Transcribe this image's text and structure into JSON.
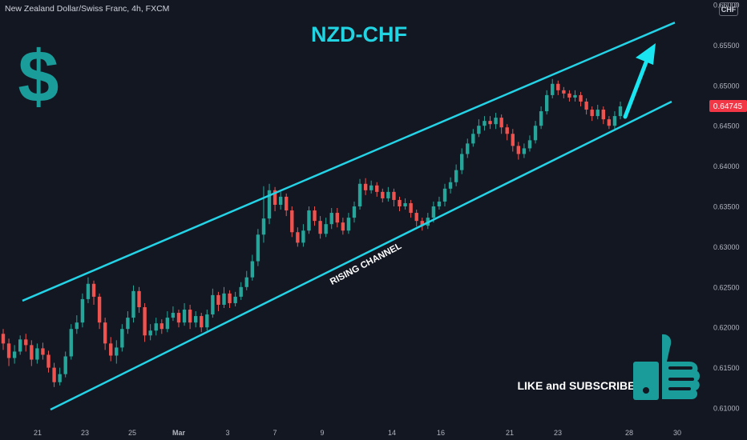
{
  "header": {
    "symbol_description": "New Zealand Dollar/Swiss Franc, 4h, FXCM",
    "currency_badge": "CHF"
  },
  "annotations": {
    "title": "NZD-CHF",
    "channel_label": "RISING CHANNEL",
    "cta": "LIKE and SUBSCRIBE",
    "dollar_symbol": "$",
    "thumbs_icon": "thumbs-up-icon",
    "arrow_icon": "up-arrow-icon"
  },
  "colors": {
    "background": "#131722",
    "up_candle": "#26a69a",
    "down_candle": "#ef5350",
    "channel_line": "#24d3e6",
    "title": "#22d3e2",
    "dollar": "#1a9c9a",
    "price_badge": "#f23645"
  },
  "chart_data": {
    "type": "candlestick",
    "title": "NZD-CHF",
    "interval": "4h",
    "ylim": [
      0.61,
      0.66
    ],
    "y_ticks": [
      "0.61000",
      "0.61500",
      "0.62000",
      "0.62500",
      "0.63000",
      "0.63500",
      "0.64000",
      "0.64500",
      "0.65000",
      "0.65500",
      "0.66000"
    ],
    "x_ticks": [
      "21",
      "23",
      "25",
      "Mar",
      "3",
      "7",
      "9",
      "14",
      "16",
      "21",
      "23",
      "28",
      "30"
    ],
    "last_price": "0.64745",
    "channel": {
      "label": "RISING CHANNEL",
      "upper": {
        "start": 0.6233,
        "end": 0.6578
      },
      "lower": {
        "start": 0.6098,
        "end": 0.648
      }
    },
    "candles": [
      [
        0.6192,
        0.618,
        0.6198,
        0.6172
      ],
      [
        0.618,
        0.6162,
        0.6186,
        0.6152
      ],
      [
        0.6162,
        0.617,
        0.6178,
        0.6155
      ],
      [
        0.617,
        0.6185,
        0.619,
        0.6166
      ],
      [
        0.6185,
        0.6178,
        0.6192,
        0.617
      ],
      [
        0.6178,
        0.616,
        0.6184,
        0.6152
      ],
      [
        0.616,
        0.6174,
        0.618,
        0.6155
      ],
      [
        0.6174,
        0.6166,
        0.6181,
        0.616
      ],
      [
        0.6166,
        0.615,
        0.6171,
        0.6144
      ],
      [
        0.615,
        0.6132,
        0.6156,
        0.6126
      ],
      [
        0.6132,
        0.6142,
        0.615,
        0.6128
      ],
      [
        0.6142,
        0.6164,
        0.617,
        0.6138
      ],
      [
        0.6164,
        0.6198,
        0.6204,
        0.616
      ],
      [
        0.6198,
        0.6206,
        0.6215,
        0.6192
      ],
      [
        0.6206,
        0.6235,
        0.6242,
        0.62
      ],
      [
        0.6235,
        0.6254,
        0.6262,
        0.623
      ],
      [
        0.6254,
        0.6238,
        0.6258,
        0.6228
      ],
      [
        0.6238,
        0.6206,
        0.6242,
        0.6198
      ],
      [
        0.6206,
        0.618,
        0.6212,
        0.6172
      ],
      [
        0.618,
        0.6165,
        0.6188,
        0.6158
      ],
      [
        0.6165,
        0.6175,
        0.6184,
        0.6155
      ],
      [
        0.6175,
        0.6198,
        0.6204,
        0.617
      ],
      [
        0.6198,
        0.6212,
        0.622,
        0.6192
      ],
      [
        0.6212,
        0.6245,
        0.6252,
        0.6206
      ],
      [
        0.6245,
        0.6225,
        0.625,
        0.6218
      ],
      [
        0.6225,
        0.619,
        0.623,
        0.6182
      ],
      [
        0.619,
        0.6196,
        0.6204,
        0.6184
      ],
      [
        0.6196,
        0.6205,
        0.6212,
        0.619
      ],
      [
        0.6205,
        0.6198,
        0.621,
        0.6192
      ],
      [
        0.6198,
        0.6212,
        0.622,
        0.6194
      ],
      [
        0.6212,
        0.6218,
        0.6226,
        0.6208
      ],
      [
        0.6218,
        0.6206,
        0.6222,
        0.62
      ],
      [
        0.6206,
        0.6222,
        0.623,
        0.6202
      ],
      [
        0.6222,
        0.6206,
        0.6228,
        0.6198
      ],
      [
        0.6206,
        0.6214,
        0.622,
        0.62
      ],
      [
        0.6214,
        0.62,
        0.6218,
        0.6194
      ],
      [
        0.62,
        0.6216,
        0.6222,
        0.6196
      ],
      [
        0.6216,
        0.624,
        0.6248,
        0.6212
      ],
      [
        0.624,
        0.6228,
        0.6244,
        0.622
      ],
      [
        0.6228,
        0.6242,
        0.625,
        0.6224
      ],
      [
        0.6242,
        0.623,
        0.6246,
        0.6224
      ],
      [
        0.623,
        0.6238,
        0.6244,
        0.6226
      ],
      [
        0.6238,
        0.625,
        0.6256,
        0.6234
      ],
      [
        0.625,
        0.6262,
        0.627,
        0.6246
      ],
      [
        0.6262,
        0.6282,
        0.629,
        0.6258
      ],
      [
        0.6282,
        0.6315,
        0.6322,
        0.6276
      ],
      [
        0.6315,
        0.6335,
        0.6375,
        0.6305
      ],
      [
        0.6335,
        0.637,
        0.6378,
        0.6328
      ],
      [
        0.637,
        0.6352,
        0.6374,
        0.6344
      ],
      [
        0.6352,
        0.6362,
        0.6368,
        0.6346
      ],
      [
        0.6362,
        0.6345,
        0.6366,
        0.6338
      ],
      [
        0.6345,
        0.6318,
        0.635,
        0.6312
      ],
      [
        0.6318,
        0.6305,
        0.6324,
        0.63
      ],
      [
        0.6305,
        0.632,
        0.6328,
        0.63
      ],
      [
        0.632,
        0.6345,
        0.635,
        0.6316
      ],
      [
        0.6345,
        0.6332,
        0.635,
        0.6326
      ],
      [
        0.6332,
        0.6316,
        0.6338,
        0.631
      ],
      [
        0.6316,
        0.6328,
        0.6336,
        0.6312
      ],
      [
        0.6328,
        0.6342,
        0.6348,
        0.6322
      ],
      [
        0.6342,
        0.633,
        0.6348,
        0.6324
      ],
      [
        0.633,
        0.632,
        0.6336,
        0.6315
      ],
      [
        0.632,
        0.6336,
        0.6342,
        0.6316
      ],
      [
        0.6336,
        0.635,
        0.6356,
        0.633
      ],
      [
        0.635,
        0.6378,
        0.6384,
        0.6346
      ],
      [
        0.6378,
        0.637,
        0.6385,
        0.6364
      ],
      [
        0.637,
        0.6376,
        0.6382,
        0.6366
      ],
      [
        0.6376,
        0.6368,
        0.638,
        0.6362
      ],
      [
        0.6368,
        0.636,
        0.6372,
        0.6355
      ],
      [
        0.636,
        0.6368,
        0.6374,
        0.6356
      ],
      [
        0.6368,
        0.6358,
        0.6372,
        0.635
      ],
      [
        0.6358,
        0.635,
        0.6362,
        0.6344
      ],
      [
        0.635,
        0.6354,
        0.636,
        0.6346
      ],
      [
        0.6354,
        0.6342,
        0.6358,
        0.6336
      ],
      [
        0.6342,
        0.6332,
        0.6346,
        0.6325
      ],
      [
        0.6332,
        0.6326,
        0.6336,
        0.632
      ],
      [
        0.6326,
        0.6336,
        0.6342,
        0.6322
      ],
      [
        0.6336,
        0.635,
        0.6356,
        0.633
      ],
      [
        0.635,
        0.6356,
        0.6362,
        0.6346
      ],
      [
        0.6356,
        0.6372,
        0.6378,
        0.635
      ],
      [
        0.6372,
        0.638,
        0.6386,
        0.6366
      ],
      [
        0.638,
        0.6395,
        0.6402,
        0.6375
      ],
      [
        0.6395,
        0.6415,
        0.6422,
        0.639
      ],
      [
        0.6415,
        0.6428,
        0.6434,
        0.641
      ],
      [
        0.6428,
        0.644,
        0.6446,
        0.6424
      ],
      [
        0.644,
        0.645,
        0.6458,
        0.6436
      ],
      [
        0.645,
        0.6456,
        0.6462,
        0.6444
      ],
      [
        0.6456,
        0.6452,
        0.6462,
        0.6446
      ],
      [
        0.6452,
        0.646,
        0.6466,
        0.6446
      ],
      [
        0.646,
        0.6448,
        0.6464,
        0.644
      ],
      [
        0.6448,
        0.644,
        0.6452,
        0.6432
      ],
      [
        0.644,
        0.6425,
        0.6446,
        0.6418
      ],
      [
        0.6425,
        0.6415,
        0.643,
        0.6408
      ],
      [
        0.6415,
        0.6422,
        0.6428,
        0.641
      ],
      [
        0.6422,
        0.6432,
        0.6438,
        0.6418
      ],
      [
        0.6432,
        0.645,
        0.6456,
        0.6428
      ],
      [
        0.645,
        0.6468,
        0.6474,
        0.6446
      ],
      [
        0.6468,
        0.6488,
        0.6494,
        0.6464
      ],
      [
        0.6488,
        0.6502,
        0.6508,
        0.6484
      ],
      [
        0.6502,
        0.6494,
        0.6506,
        0.6488
      ],
      [
        0.6494,
        0.649,
        0.6498,
        0.6484
      ],
      [
        0.649,
        0.6485,
        0.6494,
        0.648
      ],
      [
        0.6485,
        0.6488,
        0.6494,
        0.648
      ],
      [
        0.6488,
        0.648,
        0.6492,
        0.6474
      ],
      [
        0.648,
        0.647,
        0.6484,
        0.6464
      ],
      [
        0.647,
        0.6462,
        0.6474,
        0.6456
      ],
      [
        0.6462,
        0.647,
        0.6476,
        0.6458
      ],
      [
        0.647,
        0.6458,
        0.6474,
        0.6452
      ],
      [
        0.6458,
        0.645,
        0.6462,
        0.6446
      ],
      [
        0.645,
        0.6462,
        0.6468,
        0.6446
      ],
      [
        0.6462,
        0.6474,
        0.648,
        0.6458
      ]
    ]
  }
}
